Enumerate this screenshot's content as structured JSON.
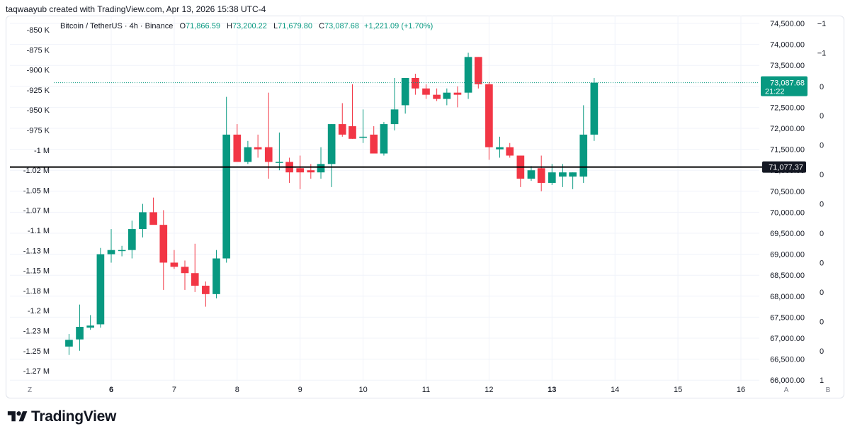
{
  "credit": "taqwaayub created with TradingView.com, Apr 13, 2026 15:38 UTC-4",
  "brand": {
    "name": "TradingView",
    "icon": "tradingview-logo-icon"
  },
  "legend": {
    "symbol": "Bitcoin / TetherUS · 4h · Binance",
    "open_label": "O",
    "open": "71,866.59",
    "high_label": "H",
    "high": "73,200.22",
    "low_label": "L",
    "low": "71,679.80",
    "close_label": "C",
    "close": "73,087.68",
    "change": "+1,221.09 (+1.70%)"
  },
  "colors": {
    "up": "#089981",
    "down": "#f23645",
    "grid": "#f0f3fa",
    "text": "#131722",
    "line": "#000000"
  },
  "chart_data": {
    "type": "candlestick",
    "price_axis": {
      "range": [
        65950,
        74600
      ],
      "ticks": [
        "74,500.00",
        "74,000.00",
        "73,500.00",
        "73,000.00",
        "72,500.00",
        "72,000.00",
        "71,500.00",
        "71,000.00",
        "70,500.00",
        "70,000.00",
        "69,500.00",
        "69,000.00",
        "68,500.00",
        "68,000.00",
        "67,500.00",
        "67,000.00",
        "66,500.00",
        "66,000.00"
      ],
      "tick_values": [
        74500,
        74000,
        73500,
        73000,
        72500,
        72000,
        71500,
        71000,
        70500,
        70000,
        69500,
        69000,
        68500,
        68000,
        67500,
        67000,
        66500,
        66000
      ]
    },
    "left_axis": {
      "ticks": [
        "-850 K",
        "-875 K",
        "-900 K",
        "-925 K",
        "-950 K",
        "-975 K",
        "-1 M",
        "-1.02 M",
        "-1.05 M",
        "-1.07 M",
        "-1.1 M",
        "-1.13 M",
        "-1.15 M",
        "-1.18 M",
        "-1.2 M",
        "-1.23 M",
        "-1.25 M",
        "-1.27 M"
      ],
      "tick_values": [
        -850000,
        -875000,
        -900000,
        -925000,
        -950000,
        -975000,
        -1000000,
        -1025000,
        -1050000,
        -1075000,
        -1100000,
        -1125000,
        -1150000,
        -1175000,
        -1200000,
        -1225000,
        -1250000,
        -1275000
      ]
    },
    "far_right_axis": {
      "ticks": [
        "−1",
        "−1",
        "0",
        "0",
        "0",
        "0",
        "0",
        "0",
        "0",
        "0",
        "0",
        "0",
        "1"
      ],
      "tick_values": [
        74500,
        73800,
        73000,
        72300,
        71600,
        70900,
        70200,
        69500,
        68800,
        68100,
        67400,
        66700,
        66000
      ]
    },
    "time_axis": {
      "labels": [
        "6",
        "7",
        "8",
        "9",
        "10",
        "11",
        "12",
        "13",
        "14",
        "15",
        "16"
      ],
      "days": [
        6,
        7,
        8,
        9,
        10,
        11,
        12,
        13,
        14,
        15,
        16
      ],
      "bold": [
        true,
        false,
        false,
        false,
        false,
        false,
        false,
        true,
        false,
        false,
        false
      ],
      "range_days": [
        5.3,
        16.3
      ]
    },
    "horizontal_line": {
      "price": 71077.37,
      "label": "71,077.37"
    },
    "last_price": {
      "price": 73087.68,
      "label": "73,087.68",
      "countdown": "21:22"
    },
    "candle_interval_hours": 4,
    "candles": [
      {
        "t": 5.33,
        "o": 66800,
        "h": 67100,
        "l": 66600,
        "c": 66960
      },
      {
        "t": 5.5,
        "o": 66970,
        "h": 67800,
        "l": 66700,
        "c": 67270
      },
      {
        "t": 5.67,
        "o": 67250,
        "h": 67550,
        "l": 67200,
        "c": 67300
      },
      {
        "t": 5.83,
        "o": 67330,
        "h": 69150,
        "l": 67250,
        "c": 69000
      },
      {
        "t": 6.0,
        "o": 69000,
        "h": 69600,
        "l": 68800,
        "c": 69100
      },
      {
        "t": 6.17,
        "o": 69080,
        "h": 69200,
        "l": 68950,
        "c": 69100
      },
      {
        "t": 6.33,
        "o": 69100,
        "h": 69800,
        "l": 68900,
        "c": 69600
      },
      {
        "t": 6.5,
        "o": 69600,
        "h": 70200,
        "l": 69400,
        "c": 70000
      },
      {
        "t": 6.67,
        "o": 70000,
        "h": 70350,
        "l": 69750,
        "c": 69700
      },
      {
        "t": 6.83,
        "o": 69700,
        "h": 70050,
        "l": 68150,
        "c": 68800
      },
      {
        "t": 7.0,
        "o": 68800,
        "h": 69100,
        "l": 68650,
        "c": 68700
      },
      {
        "t": 7.17,
        "o": 68700,
        "h": 68850,
        "l": 68150,
        "c": 68550
      },
      {
        "t": 7.33,
        "o": 68550,
        "h": 69250,
        "l": 68100,
        "c": 68250
      },
      {
        "t": 7.5,
        "o": 68250,
        "h": 68350,
        "l": 67750,
        "c": 68050
      },
      {
        "t": 7.67,
        "o": 68050,
        "h": 69100,
        "l": 67950,
        "c": 68900
      },
      {
        "t": 7.83,
        "o": 68900,
        "h": 72750,
        "l": 68800,
        "c": 71850
      },
      {
        "t": 8.0,
        "o": 71850,
        "h": 72100,
        "l": 71250,
        "c": 71200
      },
      {
        "t": 8.17,
        "o": 71200,
        "h": 71700,
        "l": 71150,
        "c": 71550
      },
      {
        "t": 8.33,
        "o": 71550,
        "h": 71850,
        "l": 71300,
        "c": 71500
      },
      {
        "t": 8.5,
        "o": 71550,
        "h": 72850,
        "l": 70800,
        "c": 71200
      },
      {
        "t": 8.67,
        "o": 71200,
        "h": 71900,
        "l": 71000,
        "c": 71200
      },
      {
        "t": 8.83,
        "o": 71200,
        "h": 71300,
        "l": 70700,
        "c": 70950
      },
      {
        "t": 9.0,
        "o": 71050,
        "h": 71350,
        "l": 70550,
        "c": 70950
      },
      {
        "t": 9.17,
        "o": 71000,
        "h": 71150,
        "l": 70800,
        "c": 70950
      },
      {
        "t": 9.33,
        "o": 70950,
        "h": 71550,
        "l": 70800,
        "c": 71150
      },
      {
        "t": 9.5,
        "o": 71150,
        "h": 72100,
        "l": 70600,
        "c": 72100
      },
      {
        "t": 9.67,
        "o": 72100,
        "h": 72600,
        "l": 71800,
        "c": 71850
      },
      {
        "t": 9.83,
        "o": 72050,
        "h": 73050,
        "l": 71750,
        "c": 71750
      },
      {
        "t": 10.0,
        "o": 71800,
        "h": 72450,
        "l": 71650,
        "c": 71800
      },
      {
        "t": 10.17,
        "o": 71850,
        "h": 72050,
        "l": 71450,
        "c": 71400
      },
      {
        "t": 10.33,
        "o": 71400,
        "h": 72150,
        "l": 71350,
        "c": 72100
      },
      {
        "t": 10.5,
        "o": 72100,
        "h": 73200,
        "l": 71950,
        "c": 72450
      },
      {
        "t": 10.67,
        "o": 72550,
        "h": 73200,
        "l": 72350,
        "c": 73200
      },
      {
        "t": 10.83,
        "o": 73200,
        "h": 73300,
        "l": 72800,
        "c": 72950
      },
      {
        "t": 11.0,
        "o": 72950,
        "h": 73050,
        "l": 72700,
        "c": 72800
      },
      {
        "t": 11.17,
        "o": 72800,
        "h": 72950,
        "l": 72650,
        "c": 72700
      },
      {
        "t": 11.33,
        "o": 72700,
        "h": 72950,
        "l": 72550,
        "c": 72850
      },
      {
        "t": 11.5,
        "o": 72850,
        "h": 73000,
        "l": 72500,
        "c": 72800
      },
      {
        "t": 11.67,
        "o": 72850,
        "h": 73800,
        "l": 72700,
        "c": 73700
      },
      {
        "t": 11.83,
        "o": 73700,
        "h": 73700,
        "l": 72950,
        "c": 73050
      },
      {
        "t": 12.0,
        "o": 73050,
        "h": 73100,
        "l": 71250,
        "c": 71550
      },
      {
        "t": 12.17,
        "o": 71500,
        "h": 71800,
        "l": 71300,
        "c": 71550
      },
      {
        "t": 12.33,
        "o": 71550,
        "h": 71650,
        "l": 71300,
        "c": 71350
      },
      {
        "t": 12.5,
        "o": 71350,
        "h": 71350,
        "l": 70600,
        "c": 70800
      },
      {
        "t": 12.67,
        "o": 70800,
        "h": 71100,
        "l": 70750,
        "c": 71000
      },
      {
        "t": 12.83,
        "o": 71050,
        "h": 71350,
        "l": 70500,
        "c": 70700
      },
      {
        "t": 13.0,
        "o": 70700,
        "h": 71150,
        "l": 70650,
        "c": 70950
      },
      {
        "t": 13.17,
        "o": 70850,
        "h": 71150,
        "l": 70600,
        "c": 70950
      },
      {
        "t": 13.33,
        "o": 70850,
        "h": 70950,
        "l": 70550,
        "c": 70950
      },
      {
        "t": 13.5,
        "o": 70850,
        "h": 72550,
        "l": 70700,
        "c": 71850
      },
      {
        "t": 13.67,
        "o": 71850,
        "h": 73200,
        "l": 71700,
        "c": 73087.68
      }
    ]
  }
}
